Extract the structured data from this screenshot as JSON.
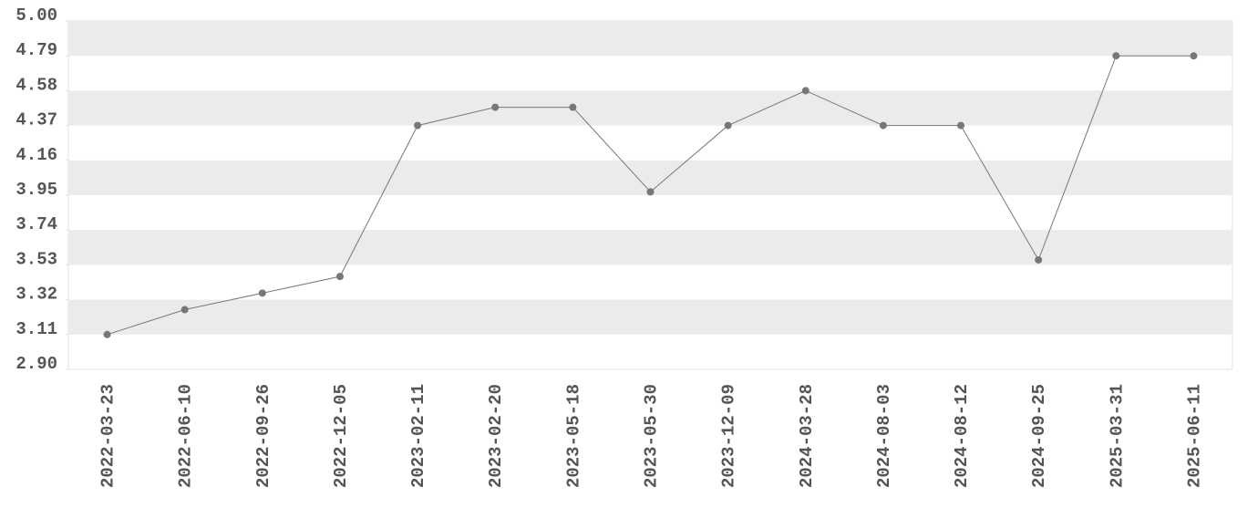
{
  "chart_data": {
    "type": "line",
    "categories": [
      "2022-03-23",
      "2022-06-10",
      "2022-09-26",
      "2022-12-05",
      "2023-02-11",
      "2023-02-20",
      "2023-05-18",
      "2023-05-30",
      "2023-12-09",
      "2024-03-28",
      "2024-08-03",
      "2024-08-12",
      "2024-09-25",
      "2025-03-31",
      "2025-06-11"
    ],
    "values": [
      3.11,
      3.26,
      3.36,
      3.46,
      4.37,
      4.48,
      4.48,
      3.97,
      4.37,
      4.58,
      4.37,
      4.37,
      3.56,
      4.79,
      4.79
    ],
    "color": "#777777",
    "ylim": [
      2.9,
      5.0
    ],
    "yticks": [
      {
        "value": 2.9,
        "label": "2.90"
      },
      3.11,
      3.32,
      3.53,
      3.74,
      3.95,
      4.16,
      4.37,
      4.58,
      4.79,
      {
        "value": 5.0,
        "label": "5.00"
      }
    ],
    "grid_bands": true,
    "markers": true
  }
}
